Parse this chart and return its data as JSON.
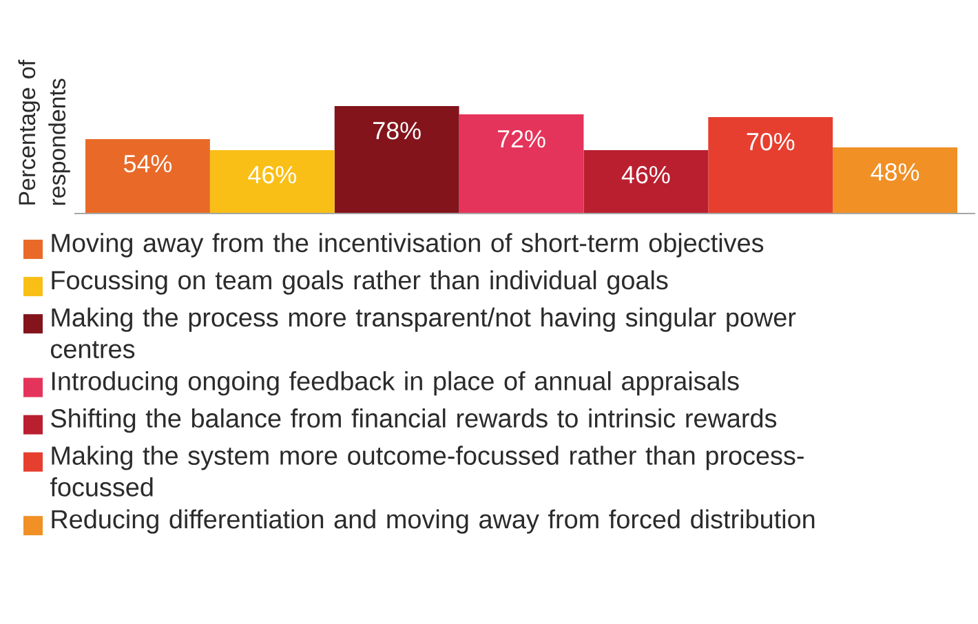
{
  "chart_data": {
    "type": "bar",
    "stacked": true,
    "ylabel": "Percentage of respondents",
    "legend": "bottom",
    "categories": [
      null,
      null,
      null,
      null,
      null,
      null,
      null
    ],
    "series": [
      {
        "name": "Moving away from the incentivisation of short-term objectives",
        "color": "#e96a28",
        "values": [
          54,
          null,
          null,
          null,
          null,
          null,
          null
        ],
        "value_labels": [
          "54%",
          null,
          null,
          null,
          null,
          null,
          null
        ]
      },
      {
        "name": "Focussing on team goals rather than individual goals",
        "color": "#f9bf16",
        "values": [
          null,
          46,
          null,
          null,
          null,
          null,
          null
        ],
        "value_labels": [
          null,
          "46%",
          null,
          null,
          null,
          null,
          null
        ]
      },
      {
        "name": "Making the process more transparent/not having singular power centres",
        "color": "#83141b",
        "values": [
          null,
          null,
          78,
          null,
          null,
          null,
          null
        ],
        "value_labels": [
          null,
          null,
          "78%",
          null,
          null,
          null,
          null
        ]
      },
      {
        "name": "Introducing ongoing feedback in place of annual appraisals",
        "color": "#e5345b",
        "values": [
          null,
          null,
          null,
          72,
          null,
          null,
          null
        ],
        "value_labels": [
          null,
          null,
          null,
          "72%",
          null,
          null,
          null
        ]
      },
      {
        "name": "Shifting the balance from financial rewards to intrinsic rewards",
        "color": "#ba1f30",
        "values": [
          null,
          null,
          null,
          null,
          46,
          null,
          null
        ],
        "value_labels": [
          null,
          null,
          null,
          null,
          "46%",
          null,
          null
        ]
      },
      {
        "name": "Making the system more outcome-focussed rather than process-focussed",
        "color": "#e63f30",
        "values": [
          null,
          null,
          null,
          null,
          null,
          70,
          null
        ],
        "value_labels": [
          null,
          null,
          null,
          null,
          null,
          "70%",
          null
        ]
      },
      {
        "name": "Reducing differentiation and moving away from forced distribution",
        "color": "#f09025",
        "values": [
          null,
          null,
          null,
          null,
          null,
          null,
          48
        ],
        "value_labels": [
          null,
          null,
          null,
          null,
          null,
          null,
          "48%"
        ]
      }
    ]
  }
}
